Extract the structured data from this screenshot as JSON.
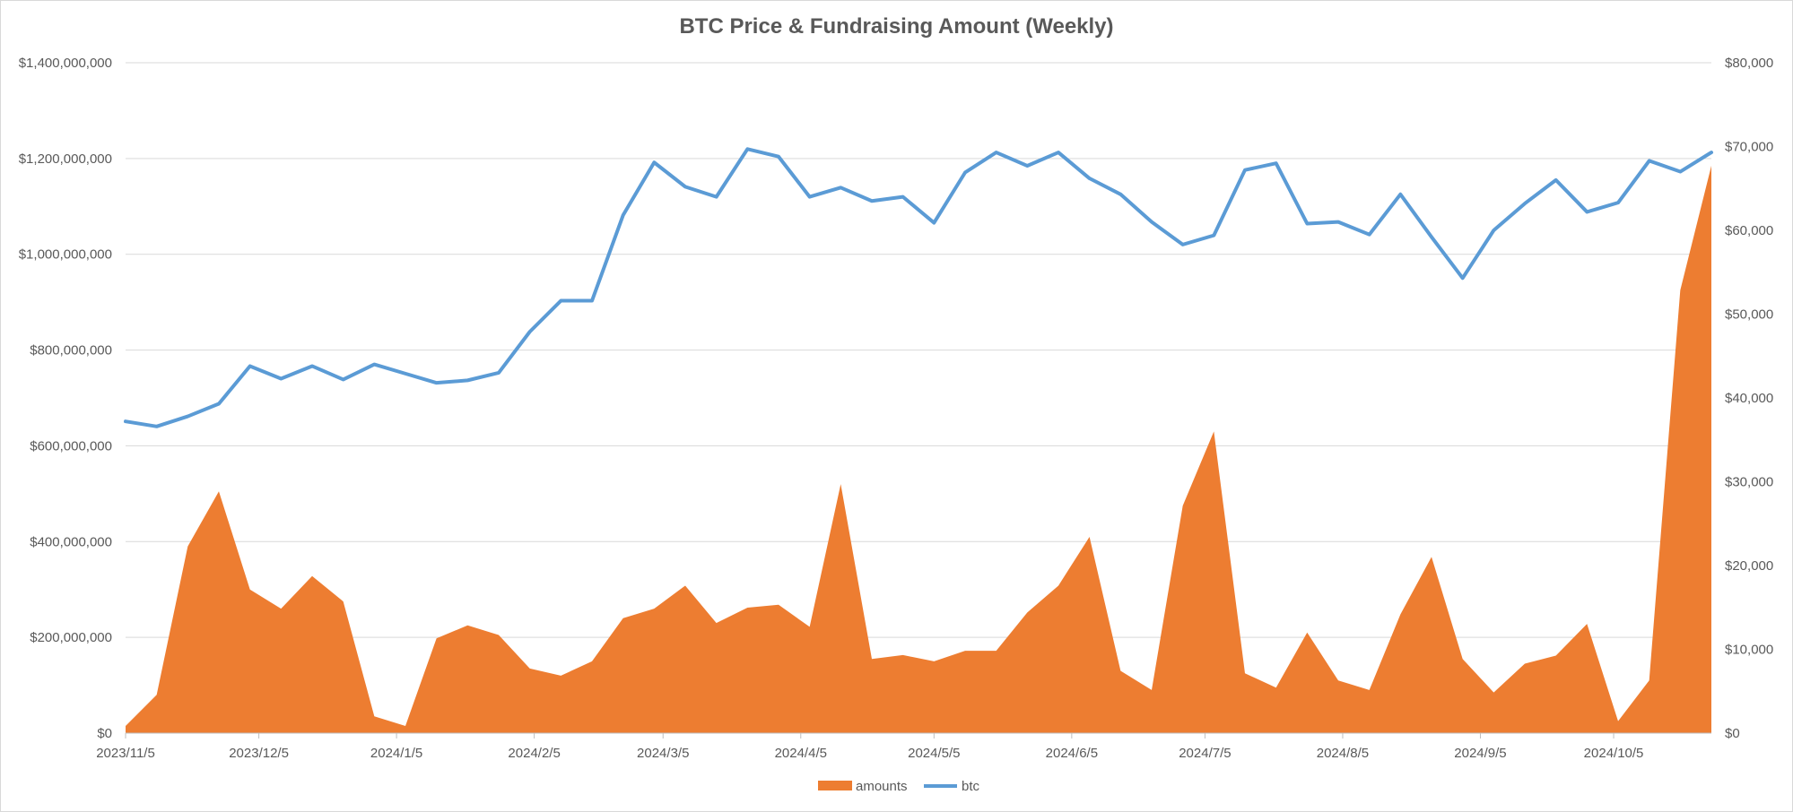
{
  "chart_data": {
    "type": "area",
    "title": "BTC Price & Fundraising Amount (Weekly)",
    "x_tick_labels": [
      "2023/11/5",
      "2023/12/5",
      "2024/1/5",
      "2024/2/5",
      "2024/3/5",
      "2024/4/5",
      "2024/5/5",
      "2024/6/5",
      "2024/7/5",
      "2024/8/5",
      "2024/9/5",
      "2024/10/5"
    ],
    "x_tick_dates": [
      "2023-11-05",
      "2023-12-05",
      "2024-01-05",
      "2024-02-05",
      "2024-03-05",
      "2024-04-05",
      "2024-05-05",
      "2024-06-05",
      "2024-07-05",
      "2024-08-05",
      "2024-09-05",
      "2024-10-05"
    ],
    "x": [
      "2023-11-05",
      "2023-11-12",
      "2023-11-19",
      "2023-11-26",
      "2023-12-03",
      "2023-12-10",
      "2023-12-17",
      "2023-12-24",
      "2023-12-31",
      "2024-01-07",
      "2024-01-14",
      "2024-01-21",
      "2024-01-28",
      "2024-02-04",
      "2024-02-11",
      "2024-02-18",
      "2024-02-25",
      "2024-03-03",
      "2024-03-10",
      "2024-03-17",
      "2024-03-24",
      "2024-03-31",
      "2024-04-07",
      "2024-04-14",
      "2024-04-21",
      "2024-04-28",
      "2024-05-05",
      "2024-05-12",
      "2024-05-19",
      "2024-05-26",
      "2024-06-02",
      "2024-06-09",
      "2024-06-16",
      "2024-06-23",
      "2024-06-30",
      "2024-07-07",
      "2024-07-14",
      "2024-07-21",
      "2024-07-28",
      "2024-08-04",
      "2024-08-11",
      "2024-08-18",
      "2024-08-25",
      "2024-09-01",
      "2024-09-08",
      "2024-09-15",
      "2024-09-22",
      "2024-09-29",
      "2024-10-06",
      "2024-10-13",
      "2024-10-20",
      "2024-10-27"
    ],
    "series": [
      {
        "name": "amounts",
        "axis": "left",
        "kind": "area",
        "color": "#ED7D31",
        "values": [
          15000000,
          80000000,
          390000000,
          505000000,
          300000000,
          260000000,
          328000000,
          275000000,
          35000000,
          15000000,
          198000000,
          225000000,
          205000000,
          135000000,
          120000000,
          150000000,
          240000000,
          260000000,
          308000000,
          230000000,
          262000000,
          268000000,
          222000000,
          520000000,
          155000000,
          163000000,
          150000000,
          172000000,
          172000000,
          252000000,
          308000000,
          410000000,
          130000000,
          90000000,
          475000000,
          630000000,
          125000000,
          95000000,
          210000000,
          110000000,
          90000000,
          248000000,
          368000000,
          155000000,
          85000000,
          145000000,
          162000000,
          228000000,
          25000000,
          110000000,
          925000000,
          1185000000
        ]
      },
      {
        "name": "btc",
        "axis": "right",
        "kind": "line",
        "color": "#5B9BD5",
        "values": [
          37200,
          36600,
          37800,
          39300,
          43800,
          42300,
          43800,
          42200,
          44000,
          42900,
          41800,
          42100,
          43000,
          47900,
          51600,
          51600,
          61800,
          68100,
          65200,
          64000,
          69700,
          68800,
          64000,
          65100,
          63500,
          64000,
          60900,
          66900,
          69300,
          67700,
          69300,
          66200,
          64300,
          61000,
          58300,
          59400,
          67200,
          68000,
          60800,
          61000,
          59500,
          64300,
          59200,
          54300,
          60000,
          63200,
          66000,
          62200,
          63300,
          68300,
          67000,
          69300
        ]
      }
    ],
    "y_left": {
      "min": 0,
      "max": 1400000000,
      "tick_labels": [
        "$0",
        "$200,000,000",
        "$400,000,000",
        "$600,000,000",
        "$800,000,000",
        "$1,000,000,000",
        "$1,200,000,000",
        "$1,400,000,000"
      ]
    },
    "y_right": {
      "min": 0,
      "max": 80000,
      "tick_labels": [
        "$0",
        "$10,000",
        "$20,000",
        "$30,000",
        "$40,000",
        "$50,000",
        "$60,000",
        "$70,000",
        "$80,000"
      ]
    },
    "grid": true,
    "legend_position": "bottom",
    "colors": {
      "grid": "#d9d9d9",
      "text": "#595959",
      "amounts": "#ED7D31",
      "btc": "#5B9BD5"
    }
  }
}
